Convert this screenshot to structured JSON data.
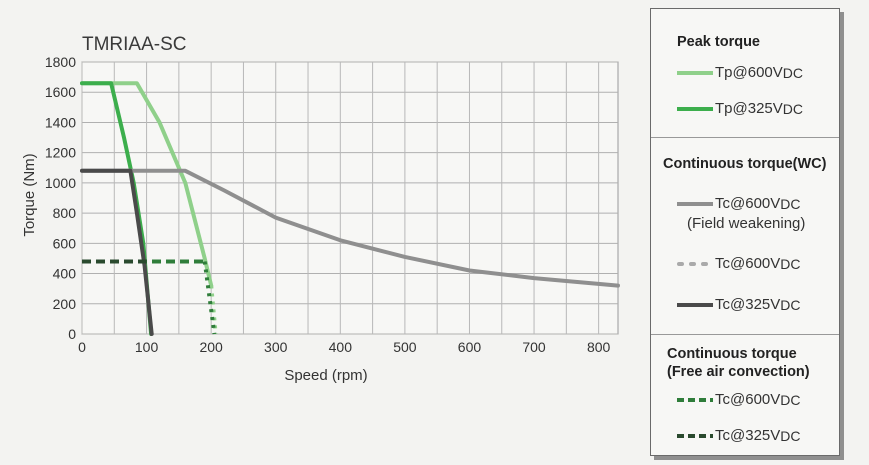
{
  "chart_data": {
    "type": "line",
    "title": "TMRIAA-SC",
    "xlabel": "Speed (rpm)",
    "ylabel": "Torque (Nm)",
    "xlim": [
      0,
      830
    ],
    "ylim": [
      0,
      1800
    ],
    "xticks": [
      0,
      100,
      200,
      300,
      400,
      500,
      600,
      700,
      800
    ],
    "yticks": [
      0,
      200,
      400,
      600,
      800,
      1000,
      1200,
      1400,
      1600,
      1800
    ],
    "grid": true,
    "legend_position": "right",
    "series": [
      {
        "key": "tp600",
        "color": "#8fd08a",
        "dash": "solid",
        "points": [
          [
            0,
            1660
          ],
          [
            85,
            1660
          ],
          [
            120,
            1400
          ],
          [
            160,
            1000
          ],
          [
            190,
            500
          ],
          [
            200,
            320
          ]
        ]
      },
      {
        "key": "tp600_tail",
        "color": "#8fd08a",
        "dash": "dotted",
        "points": [
          [
            200,
            320
          ],
          [
            207,
            0
          ]
        ]
      },
      {
        "key": "tp325",
        "color": "#3cae4c",
        "dash": "solid",
        "points": [
          [
            0,
            1660
          ],
          [
            45,
            1660
          ],
          [
            65,
            1300
          ],
          [
            80,
            1000
          ],
          [
            95,
            600
          ],
          [
            107,
            0
          ]
        ]
      },
      {
        "key": "tc600fw",
        "color": "#8f8f8f",
        "dash": "solid",
        "points": [
          [
            0,
            1080
          ],
          [
            160,
            1080
          ],
          [
            220,
            950
          ],
          [
            300,
            770
          ],
          [
            400,
            620
          ],
          [
            500,
            510
          ],
          [
            600,
            420
          ],
          [
            700,
            370
          ],
          [
            830,
            320
          ]
        ]
      },
      {
        "key": "tc325",
        "color": "#4a4a4a",
        "dash": "solid",
        "points": [
          [
            0,
            1080
          ],
          [
            75,
            1080
          ],
          [
            85,
            800
          ],
          [
            97,
            450
          ],
          [
            108,
            0
          ]
        ]
      },
      {
        "key": "tcfree600",
        "color": "#2f7d3a",
        "dash": "dashed",
        "points": [
          [
            0,
            480
          ],
          [
            190,
            480
          ]
        ]
      },
      {
        "key": "tcfree600_tail",
        "color": "#2f7d3a",
        "dash": "dotted",
        "points": [
          [
            190,
            480
          ],
          [
            205,
            0
          ]
        ]
      },
      {
        "key": "tcfree325",
        "color": "#2a4a2e",
        "dash": "dashed",
        "points": [
          [
            0,
            480
          ],
          [
            100,
            480
          ]
        ]
      }
    ]
  },
  "legend": {
    "peak_heading": "Peak torque",
    "peak_entries": [
      {
        "label": "Tp@600V",
        "sub": "DC",
        "color": "#8fd08a",
        "dash": "solid"
      },
      {
        "label": "Tp@325V",
        "sub": "DC",
        "color": "#3cae4c",
        "dash": "solid"
      }
    ],
    "wc_heading": "Continuous torque(WC)",
    "wc_entries": [
      {
        "label": "Tc@600V",
        "sub": "DC",
        "note": "(Field weakening)",
        "color": "#8f8f8f",
        "dash": "solid"
      },
      {
        "label": "Tc@600V",
        "sub": "DC",
        "color": "#aaaaaa",
        "dash": "dotted"
      },
      {
        "label": "Tc@325V",
        "sub": "DC",
        "color": "#4a4a4a",
        "dash": "solid"
      }
    ],
    "free_heading_1": "Continuous torque",
    "free_heading_2": "(Free air convection)",
    "free_entries": [
      {
        "label": "Tc@600V",
        "sub": "DC",
        "color": "#2f7d3a",
        "dash": "dashed"
      },
      {
        "label": "Tc@325V",
        "sub": "DC",
        "color": "#2a4a2e",
        "dash": "dashed"
      }
    ]
  }
}
